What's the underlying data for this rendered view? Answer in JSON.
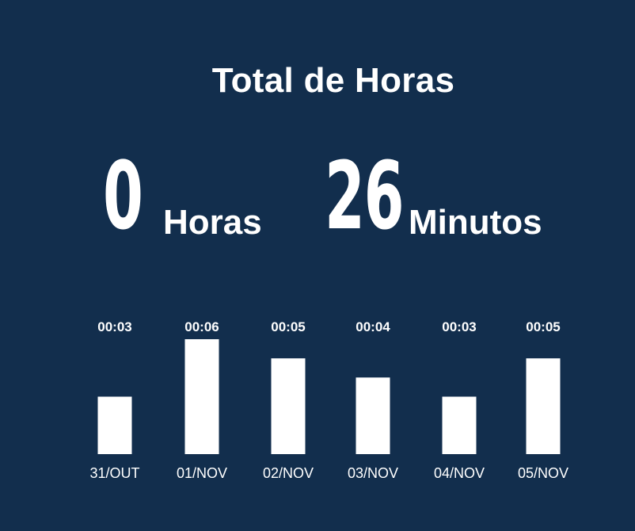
{
  "title": "Total de Horas",
  "summary": {
    "hours_value": "0",
    "hours_unit": "Horas",
    "minutes_value": "26",
    "minutes_unit": "Minutos"
  },
  "colors": {
    "background": "#122e4d",
    "bars": "#ffffff",
    "text": "#ffffff"
  },
  "chart_data": {
    "type": "bar",
    "categories": [
      "31/OUT",
      "01/NOV",
      "02/NOV",
      "03/NOV",
      "04/NOV",
      "05/NOV"
    ],
    "values": [
      3,
      6,
      5,
      4,
      3,
      5
    ],
    "value_labels": [
      "00:03",
      "00:06",
      "00:05",
      "00:04",
      "00:03",
      "00:05"
    ],
    "title": "",
    "xlabel": "",
    "ylabel": "",
    "ylim": [
      0,
      6
    ],
    "grid": false
  }
}
